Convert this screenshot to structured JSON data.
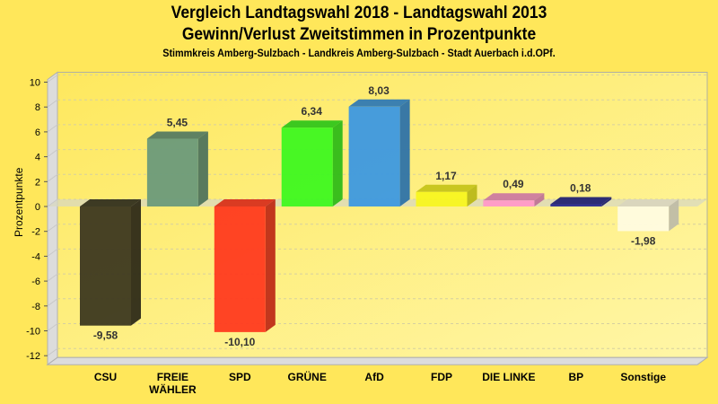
{
  "chart_data": {
    "type": "bar",
    "title": "Vergleich Landtagswahl 2018 - Landtagswahl 2013",
    "subtitle": "Gewinn/Verlust Zweitstimmen in Prozentpunkte",
    "subtitle2": "Stimmkreis Amberg-Sulzbach - Landkreis Amberg-Sulzbach - Stadt Auerbach i.d.OPf.",
    "xlabel": "",
    "ylabel": "Prozentpunkte",
    "ylim": [
      -12,
      10
    ],
    "yticks": [
      "10",
      "8",
      "6",
      "4",
      "2",
      "0",
      "-2",
      "-4",
      "-6",
      "-8",
      "-10",
      "-12"
    ],
    "grid": true,
    "categories": [
      [
        "CSU"
      ],
      [
        "FREIE",
        "WÄHLER"
      ],
      [
        "SPD"
      ],
      [
        "GRÜNE"
      ],
      [
        "AfD"
      ],
      [
        "FDP"
      ],
      [
        "DIE LINKE"
      ],
      [
        "BP"
      ],
      [
        "Sonstige"
      ]
    ],
    "values": [
      -9.58,
      5.45,
      -10.1,
      6.34,
      8.03,
      1.17,
      0.49,
      0.18,
      -1.98
    ],
    "value_labels": [
      "-9,58",
      "5,45",
      "-10,10",
      "6,34",
      "8,03",
      "1,17",
      "0,49",
      "0,18",
      "-1,98"
    ],
    "colors": [
      "#3d3820",
      "#6b9a7a",
      "#ff3a1f",
      "#3ef820",
      "#3d98e0",
      "#f8f520",
      "#ff99c8",
      "#2a2a90",
      "#fffbe0"
    ]
  }
}
